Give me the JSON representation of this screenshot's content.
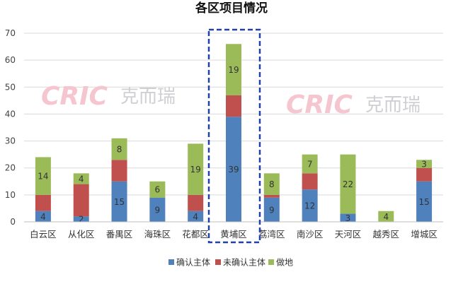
{
  "chart_data": {
    "type": "bar",
    "stacked": true,
    "title": "各区项目情况",
    "categories": [
      "白云区",
      "从化区",
      "番禺区",
      "海珠区",
      "花都区",
      "黄埔区",
      "荔湾区",
      "南沙区",
      "天河区",
      "越秀区",
      "增城区"
    ],
    "series": [
      {
        "name": "确认主体",
        "color": "#4f81bd",
        "values": [
          4,
          2,
          15,
          9,
          4,
          39,
          9,
          12,
          3,
          0,
          15
        ]
      },
      {
        "name": "未确认主体",
        "color": "#c0504d",
        "values": [
          6,
          12,
          8,
          0,
          6,
          8,
          1,
          6,
          0,
          0,
          5
        ]
      },
      {
        "name": "做地",
        "color": "#9bbb59",
        "values": [
          14,
          4,
          8,
          6,
          19,
          19,
          8,
          7,
          22,
          4,
          3
        ]
      }
    ],
    "data_labels": [
      [
        "4",
        "2",
        "15",
        "9",
        "4",
        "39",
        "9",
        "12",
        "3",
        "",
        "15"
      ],
      [
        "",
        "",
        "",
        "",
        "",
        "",
        "",
        "",
        "",
        "",
        ""
      ],
      [
        "14",
        "4",
        "8",
        "6",
        "19",
        "19",
        "8",
        "7",
        "22",
        "4",
        "3"
      ]
    ],
    "ylim": [
      0,
      70
    ],
    "yticks": [
      0,
      10,
      20,
      30,
      40,
      50,
      60,
      70
    ],
    "grid": true,
    "legend": "bottom",
    "highlight_category": "黄埔区",
    "highlight_color": "#2140a8"
  },
  "watermark": {
    "text": "CRIC",
    "cn": "克而瑞"
  }
}
